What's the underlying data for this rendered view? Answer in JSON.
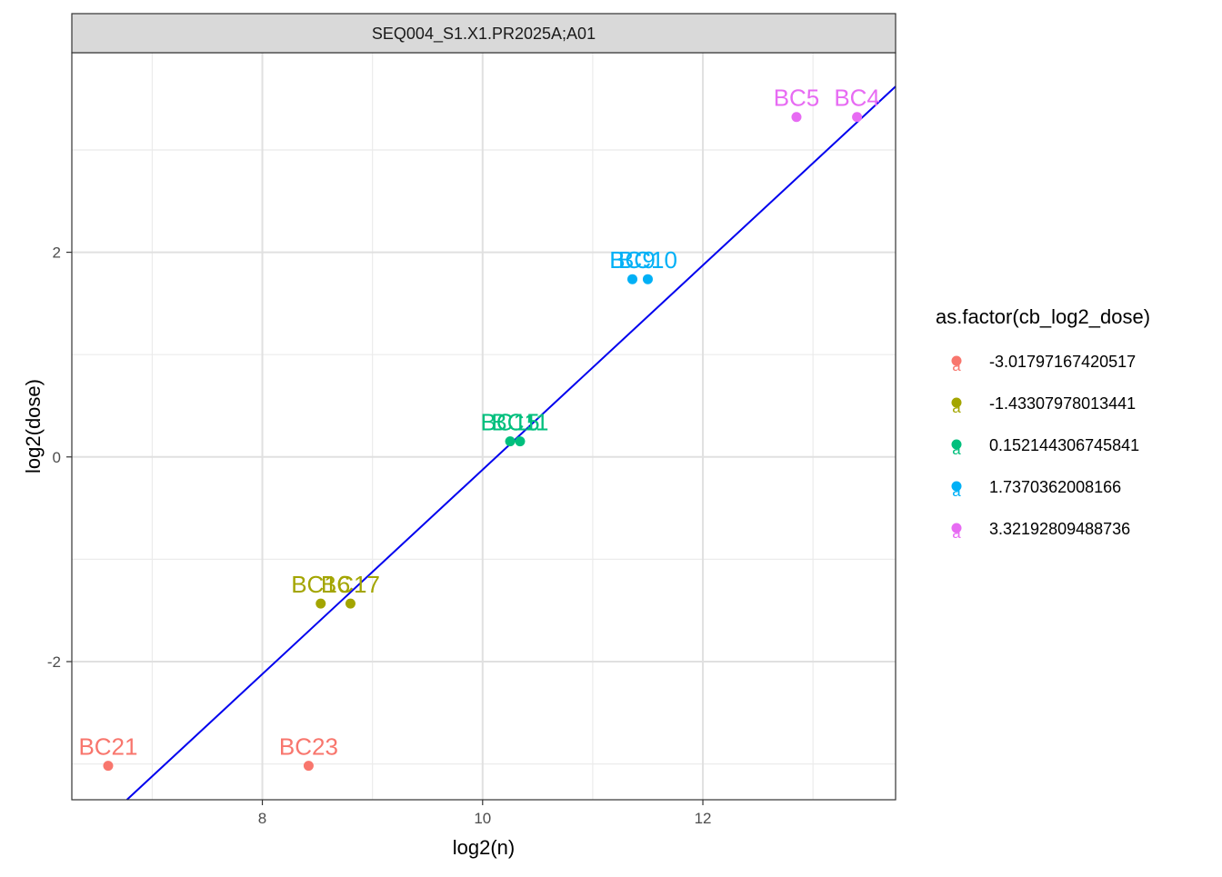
{
  "chart_data": {
    "type": "scatter",
    "facet_label": "SEQ004_S1.X1.PR2025A;A01",
    "xlabel": "log2(n)",
    "ylabel": "log2(dose)",
    "xlim": [
      6.27,
      13.75
    ],
    "ylim": [
      -3.35,
      3.95
    ],
    "x_ticks": [
      8,
      10,
      12
    ],
    "y_ticks": [
      -2,
      0,
      2
    ],
    "x_minor_ticks": [
      7,
      9,
      11,
      13
    ],
    "y_minor_ticks": [
      -3,
      -1,
      1,
      3
    ],
    "grid": true,
    "legend": {
      "title": "as.factor(cb_log2_dose)",
      "position": "right",
      "entries": [
        {
          "label": "-3.01797167420517",
          "color": "#F8766D"
        },
        {
          "label": "-1.43307978013441",
          "color": "#A3A500"
        },
        {
          "label": "0.152144306745841",
          "color": "#00BF7D"
        },
        {
          "label": "1.7370362008166",
          "color": "#00B0F6"
        },
        {
          "label": "3.32192809488736",
          "color": "#E76BF3"
        }
      ],
      "key_glyph": "a"
    },
    "points": [
      {
        "label": "BC21",
        "x": 6.6,
        "y": -3.018,
        "group": 0
      },
      {
        "label": "BC23",
        "x": 8.42,
        "y": -3.018,
        "group": 0
      },
      {
        "label": "BC16",
        "x": 8.53,
        "y": -1.433,
        "group": 1
      },
      {
        "label": "BC17",
        "x": 8.8,
        "y": -1.433,
        "group": 1
      },
      {
        "label": "BC15",
        "x": 10.25,
        "y": 0.152,
        "group": 2
      },
      {
        "label": "BC11",
        "x": 10.34,
        "y": 0.152,
        "group": 2
      },
      {
        "label": "BC9",
        "x": 11.36,
        "y": 1.737,
        "group": 3
      },
      {
        "label": "BC10",
        "x": 11.5,
        "y": 1.737,
        "group": 3
      },
      {
        "label": "BC5",
        "x": 12.85,
        "y": 3.322,
        "group": 4
      },
      {
        "label": "BC4",
        "x": 13.4,
        "y": 3.322,
        "group": 4
      }
    ],
    "fit_line": {
      "color": "#0000EE",
      "x": [
        6.77,
        13.75
      ],
      "y": [
        -3.35,
        3.62
      ]
    }
  }
}
